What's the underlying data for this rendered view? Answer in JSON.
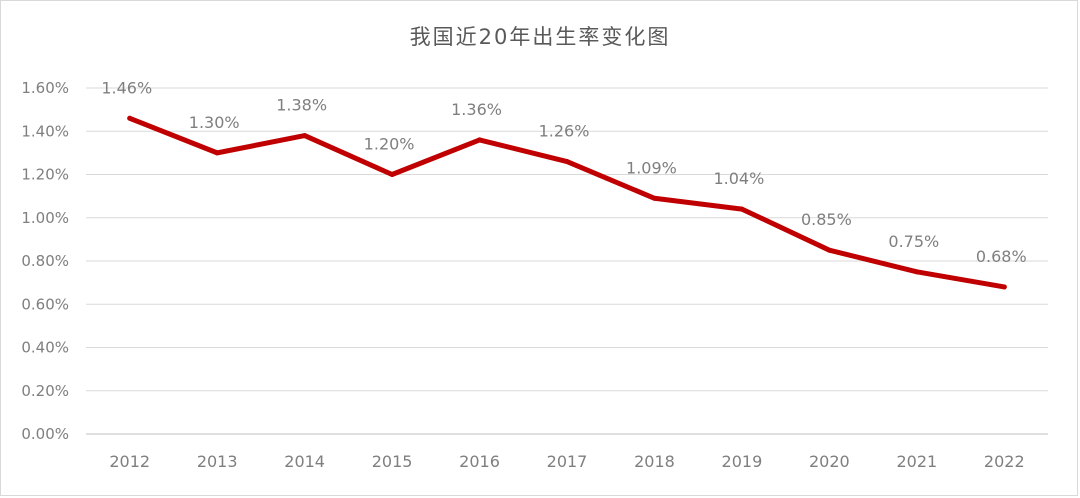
{
  "chart_data": {
    "type": "line",
    "title": "我国近20年出生率变化图",
    "xlabel": "",
    "ylabel": "",
    "categories": [
      "2012",
      "2013",
      "2014",
      "2015",
      "2016",
      "2017",
      "2018",
      "2019",
      "2020",
      "2021",
      "2022"
    ],
    "series": [
      {
        "values": [
          1.46,
          1.3,
          1.38,
          1.2,
          1.36,
          1.26,
          1.09,
          1.04,
          0.85,
          0.75,
          0.68
        ],
        "color": "#c00000"
      }
    ],
    "data_labels": [
      "1.46%",
      "1.30%",
      "1.38%",
      "1.20%",
      "1.36%",
      "1.26%",
      "1.09%",
      "1.04%",
      "0.85%",
      "0.75%",
      "0.68%"
    ],
    "ylim": [
      0,
      1.6
    ],
    "yticks": [
      0,
      0.2,
      0.4,
      0.6,
      0.8,
      1.0,
      1.2,
      1.4,
      1.6
    ],
    "ytick_labels": [
      "0.00%",
      "0.20%",
      "0.40%",
      "0.60%",
      "0.80%",
      "1.00%",
      "1.20%",
      "1.40%",
      "1.60%"
    ],
    "grid": true,
    "legend": "none"
  }
}
